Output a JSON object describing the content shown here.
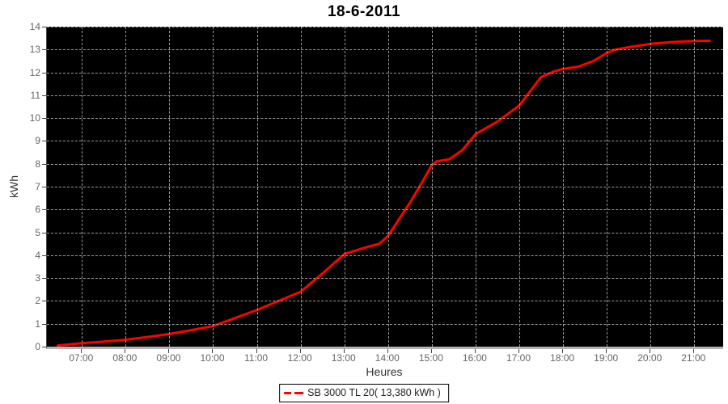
{
  "title": "18-6-2011",
  "x_axis": {
    "label": "Heures",
    "hours": [
      7,
      8,
      9,
      10,
      11,
      12,
      13,
      14,
      15,
      16,
      17,
      18,
      19,
      20,
      21
    ],
    "tick_labels": [
      "07:00",
      "08:00",
      "09:00",
      "10:00",
      "11:00",
      "12:00",
      "13:00",
      "14:00",
      "15:00",
      "16:00",
      "17:00",
      "18:00",
      "19:00",
      "20:00",
      "21:00"
    ]
  },
  "y_axis": {
    "label": "kWh",
    "tick_values": [
      0,
      1,
      2,
      3,
      4,
      5,
      6,
      7,
      8,
      9,
      10,
      11,
      12,
      13,
      14
    ]
  },
  "legend": {
    "label": "SB 3000 TL 20( 13,380 kWh )",
    "color": "#ff0000"
  },
  "colors": {
    "plot_background": "#000000",
    "gridline": "#9a9a9a",
    "series": "#ff0000",
    "tick_label": "#666666",
    "axis_title": "#333333"
  },
  "chart_data": {
    "type": "line",
    "title": "18-6-2011",
    "xlabel": "Heures",
    "ylabel": "kWh",
    "x_range_hours": [
      6.2,
      21.66
    ],
    "ylim": [
      0,
      14
    ],
    "grid": "dashed gray on black, hourly vertical / 1 kWh horizontal",
    "legend_position": "bottom-center",
    "series": [
      {
        "name": "SB 3000 TL 20( 13,380 kWh )",
        "color": "#ff0000",
        "total_kwh": 13.38,
        "points_time_kwh": [
          [
            6.45,
            0.05
          ],
          [
            7.0,
            0.15
          ],
          [
            7.5,
            0.22
          ],
          [
            8.0,
            0.3
          ],
          [
            8.5,
            0.42
          ],
          [
            9.0,
            0.55
          ],
          [
            9.5,
            0.72
          ],
          [
            10.0,
            0.9
          ],
          [
            10.5,
            1.25
          ],
          [
            11.0,
            1.6
          ],
          [
            11.5,
            2.0
          ],
          [
            12.0,
            2.4
          ],
          [
            12.5,
            3.2
          ],
          [
            13.0,
            4.05
          ],
          [
            13.5,
            4.35
          ],
          [
            13.8,
            4.5
          ],
          [
            14.0,
            4.85
          ],
          [
            14.5,
            6.3
          ],
          [
            14.75,
            7.1
          ],
          [
            15.0,
            7.95
          ],
          [
            15.1,
            8.1
          ],
          [
            15.4,
            8.2
          ],
          [
            15.7,
            8.6
          ],
          [
            16.0,
            9.3
          ],
          [
            16.5,
            9.85
          ],
          [
            17.0,
            10.55
          ],
          [
            17.3,
            11.3
          ],
          [
            17.5,
            11.8
          ],
          [
            17.8,
            12.05
          ],
          [
            18.0,
            12.15
          ],
          [
            18.35,
            12.25
          ],
          [
            18.7,
            12.5
          ],
          [
            19.0,
            12.85
          ],
          [
            19.2,
            13.0
          ],
          [
            19.5,
            13.1
          ],
          [
            20.0,
            13.25
          ],
          [
            20.5,
            13.33
          ],
          [
            21.0,
            13.37
          ],
          [
            21.35,
            13.38
          ]
        ]
      }
    ]
  }
}
